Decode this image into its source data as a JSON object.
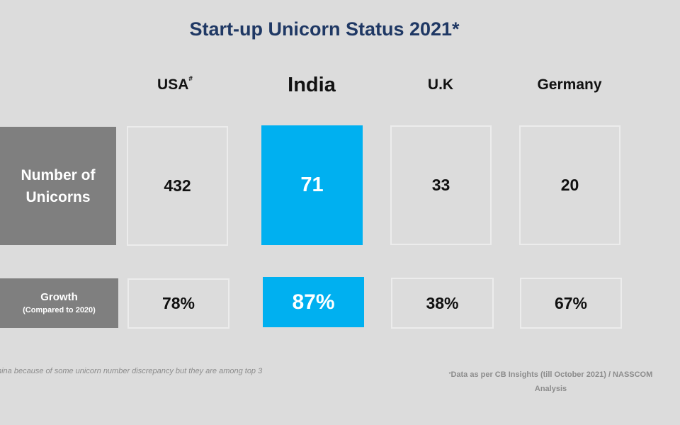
{
  "chart_data": {
    "type": "table",
    "title": "Start-up Unicorn Status 2021",
    "title_mark": "*",
    "columns": [
      {
        "label": "USA",
        "mark": "#",
        "highlight": false
      },
      {
        "label": "India",
        "mark": "",
        "highlight": true
      },
      {
        "label": "U.K",
        "mark": "",
        "highlight": false
      },
      {
        "label": "Germany",
        "mark": "",
        "highlight": false
      }
    ],
    "rows": [
      {
        "label_line1": "Number of",
        "label_line2": "Unicorns",
        "values": [
          "432",
          "71",
          "33",
          "20"
        ]
      },
      {
        "label_line1": "Growth",
        "label_line2": "(Compared to 2020)",
        "values": [
          "78%",
          "87%",
          "38%",
          "67%"
        ]
      }
    ],
    "footnote_left": "hina because of some unicorn number discrepancy but they are among top 3",
    "footnote_right_mark": "*",
    "footnote_right_line1": "Data as per CB Insights (till October 2021) / NASSCOM",
    "footnote_right_line2": "Analysis"
  },
  "colors": {
    "background": "#dcdcdc",
    "title": "#1f3864",
    "row_label_bg": "#7f7f7f",
    "highlight": "#00b0f0",
    "cell_border": "#ececec",
    "footnote": "#8c8c8c"
  }
}
